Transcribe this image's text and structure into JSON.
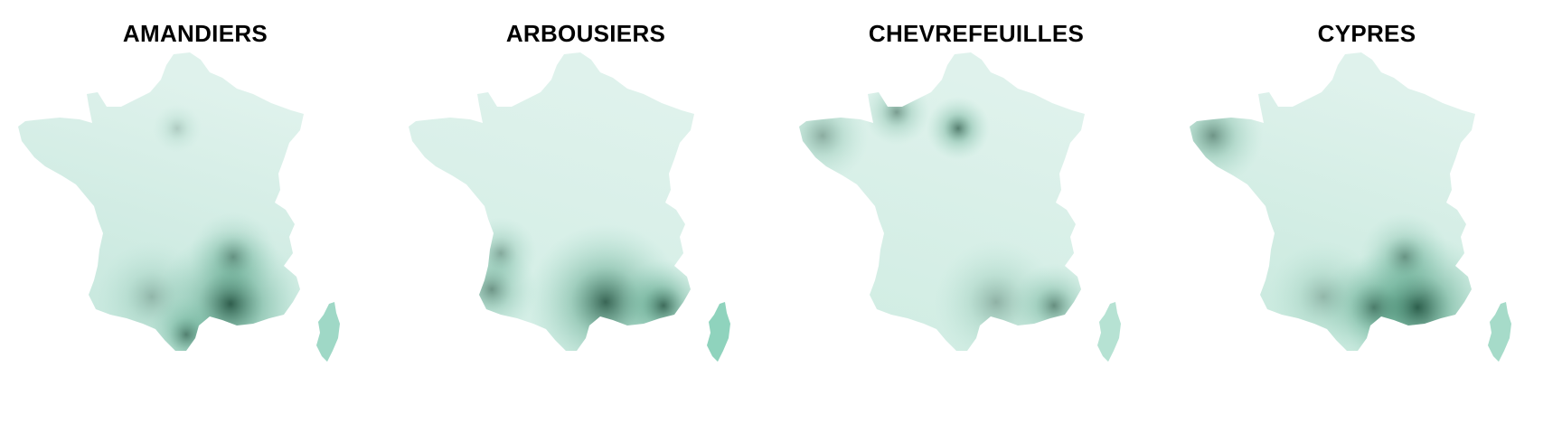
{
  "colors": {
    "background": "#ffffff",
    "scale_light": "#dff2ec",
    "scale_mid": "#9bd6c3",
    "scale_dark": "#0b3d2a"
  },
  "panels": [
    {
      "title": "AMANDIERS",
      "base_color": "#c3e6db",
      "corsica_color": "#9fd8c6",
      "hotspots": [
        {
          "region": "south-east Languedoc / Provence coast",
          "intensity": 0.95
        },
        {
          "region": "Perpignan",
          "intensity": 0.7
        },
        {
          "region": "Rhône valley",
          "intensity": 0.55
        },
        {
          "region": "Paris",
          "intensity": 0.25
        },
        {
          "region": "south-west",
          "intensity": 0.35
        }
      ]
    },
    {
      "title": "ARBOUSIERS",
      "base_color": "#d1ede4",
      "corsica_color": "#8fd3bd",
      "hotspots": [
        {
          "region": "Mediterranean coast",
          "intensity": 0.9
        },
        {
          "region": "Côte d'Azur",
          "intensity": 0.85
        },
        {
          "region": "Atlantic south-west coast",
          "intensity": 0.6
        },
        {
          "region": "Bordeaux area",
          "intensity": 0.45
        }
      ]
    },
    {
      "title": "CHEVREFEUILLES",
      "base_color": "#cfece2",
      "corsica_color": "#b6e2d3",
      "hotspots": [
        {
          "region": "Paris",
          "intensity": 0.75
        },
        {
          "region": "Normandy",
          "intensity": 0.55
        },
        {
          "region": "Brittany",
          "intensity": 0.45
        },
        {
          "region": "Côte d'Azur",
          "intensity": 0.65
        },
        {
          "region": "Mediterranean coast",
          "intensity": 0.4
        }
      ]
    },
    {
      "title": "CYPRES",
      "base_color": "#c6e8dc",
      "corsica_color": "#a6dbc9",
      "hotspots": [
        {
          "region": "Provence / Marseille",
          "intensity": 1.0
        },
        {
          "region": "Languedoc",
          "intensity": 0.7
        },
        {
          "region": "Rhône valley",
          "intensity": 0.55
        },
        {
          "region": "Brittany",
          "intensity": 0.6
        },
        {
          "region": "south-west",
          "intensity": 0.35
        }
      ]
    }
  ]
}
